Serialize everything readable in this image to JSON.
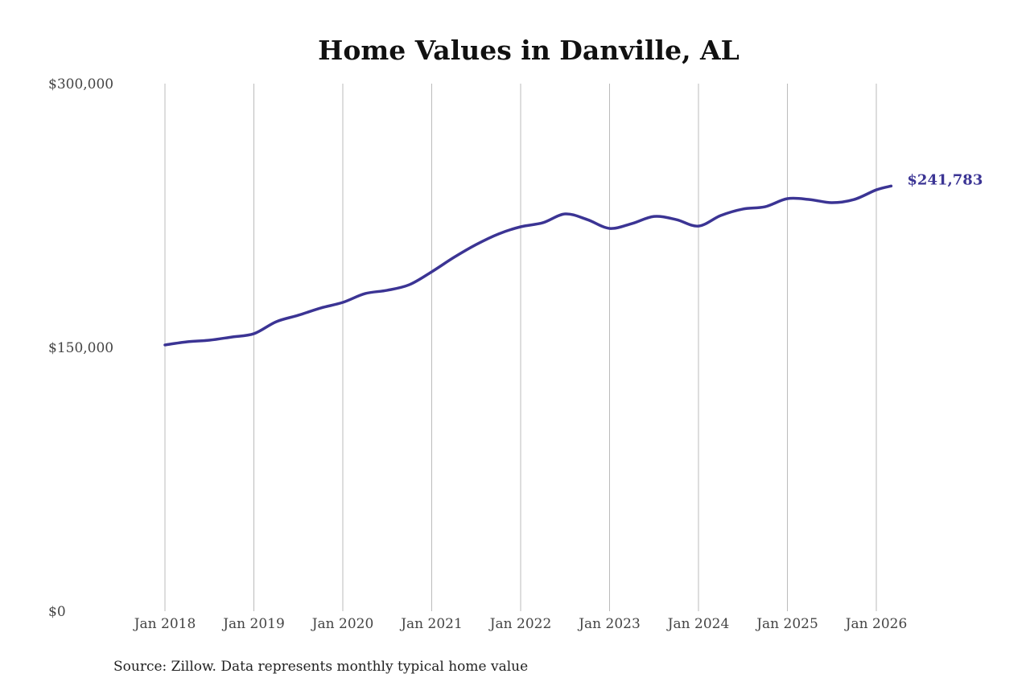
{
  "chart_data": {
    "type": "line",
    "title": "Home Values in Danville, AL",
    "source": "Source: Zillow. Data represents monthly typical home value",
    "xlabel": "",
    "ylabel": "",
    "ylim": [
      0,
      300000
    ],
    "y_ticks": [
      0,
      150000,
      300000
    ],
    "y_tick_labels": [
      "$0",
      "$150,000",
      "$300,000"
    ],
    "x_ticks": [
      "2018-01",
      "2019-01",
      "2020-01",
      "2021-01",
      "2022-01",
      "2023-01",
      "2024-01",
      "2025-01",
      "2026-01"
    ],
    "x_tick_labels": [
      "Jan 2018",
      "Jan 2019",
      "Jan 2020",
      "Jan 2021",
      "Jan 2022",
      "Jan 2023",
      "Jan 2024",
      "Jan 2025",
      "Jan 2026"
    ],
    "grid": "vertical",
    "line_color": "#3b3494",
    "end_label": "$241,783",
    "series": [
      {
        "x": [
          "2018-01",
          "2018-04",
          "2018-07",
          "2018-10",
          "2019-01",
          "2019-04",
          "2019-07",
          "2019-10",
          "2020-01",
          "2020-04",
          "2020-07",
          "2020-10",
          "2021-01",
          "2021-04",
          "2021-07",
          "2021-10",
          "2022-01",
          "2022-04",
          "2022-07",
          "2022-10",
          "2023-01",
          "2023-04",
          "2023-07",
          "2023-10",
          "2024-01",
          "2024-04",
          "2024-07",
          "2024-10",
          "2025-01",
          "2025-04",
          "2025-07",
          "2025-10",
          "2026-01",
          "2026-03"
        ],
        "values": [
          151400,
          153200,
          154100,
          155900,
          157800,
          164600,
          168300,
          172400,
          175600,
          180600,
          182500,
          185700,
          193000,
          201200,
          208500,
          214500,
          218600,
          220900,
          225900,
          222700,
          217700,
          220400,
          224500,
          222700,
          219000,
          225000,
          228700,
          230000,
          234600,
          234100,
          232300,
          234100,
          239600,
          241783
        ]
      }
    ]
  }
}
